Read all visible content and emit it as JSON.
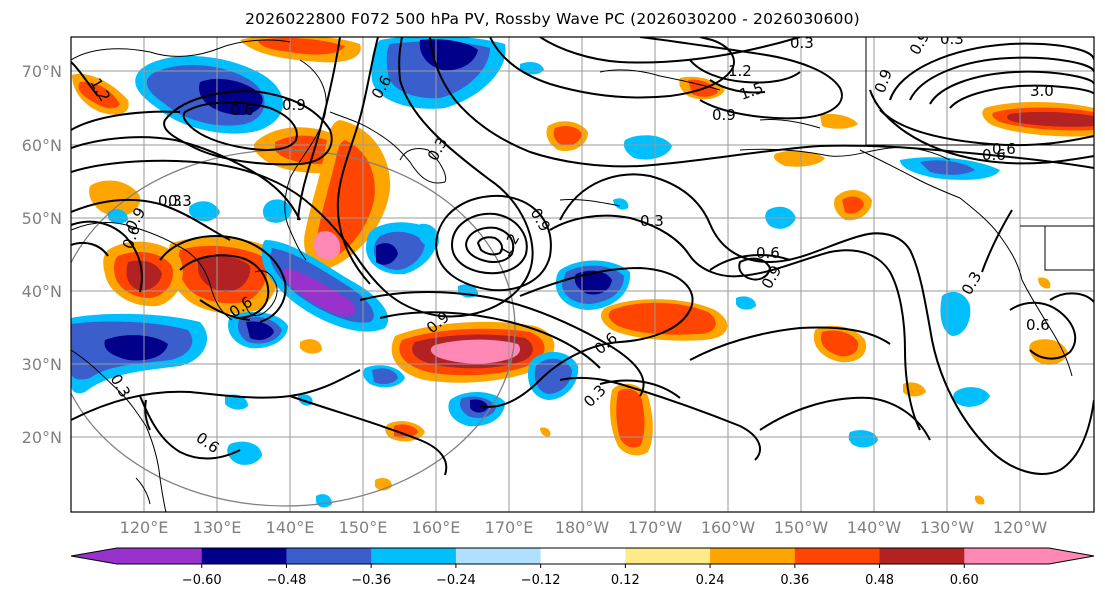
{
  "title": "2026022800 F072 500 hPa PV, Rossby Wave PC (2026030200 - 2026030600)",
  "lat_labels": [
    "70°N",
    "60°N",
    "50°N",
    "40°N",
    "30°N",
    "20°N"
  ],
  "lon_labels": [
    "120°E",
    "130°E",
    "140°E",
    "150°E",
    "160°E",
    "170°E",
    "180°W",
    "170°W",
    "160°W",
    "150°W",
    "140°W",
    "130°W",
    "120°W"
  ],
  "contour_labels": [
    "1.2",
    "0.9",
    "0.6",
    "0.3",
    "0.6",
    "0.3",
    "0.9",
    "1.2",
    "1.5",
    "0.9",
    "0.3",
    "0.6",
    "3.0",
    "0.6",
    "0.9",
    "0.3",
    "0.9",
    "1.2",
    "0.6",
    "0.9",
    "0.3",
    "0.6",
    "0.9",
    "0.6",
    "0.3",
    "0.6",
    "0.3",
    "0.6",
    "0.9",
    "0.6",
    "0.3",
    "0.3"
  ],
  "colorbar": {
    "ticks": [
      "−0.60",
      "−0.48",
      "−0.36",
      "−0.24",
      "−0.12",
      "0.12",
      "0.24",
      "0.36",
      "0.48",
      "0.60"
    ],
    "colors": [
      "#9932cc",
      "#00008b",
      "#3a5fcd",
      "#00bfff",
      "#b0e0ff",
      "#ffffff",
      "#ffea8a",
      "#ffa500",
      "#ff4500",
      "#b22222",
      "#ff88b4"
    ]
  }
}
